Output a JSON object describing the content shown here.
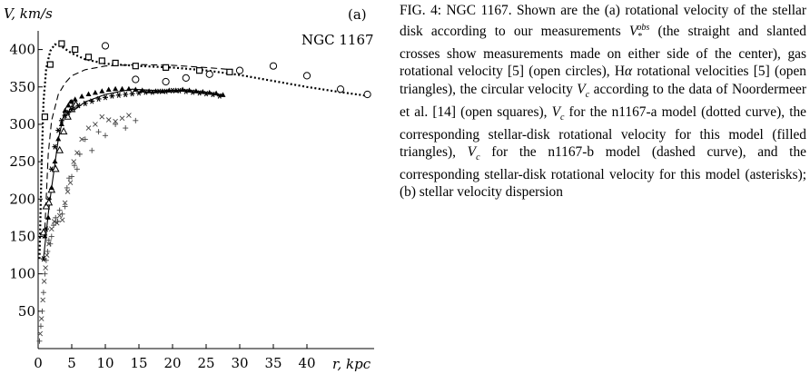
{
  "caption": {
    "label": "FIG. 4:",
    "segments": [
      " NGC 1167. Shown are the (a) rotational velocity of the stellar disk according to our measurements ",
      "V",
      "*",
      "obs",
      " (the straight and slanted crosses show measurements made on either side of the center), gas rotational velocity [5] (open circles), H",
      "α",
      " rotational velocities [5] (open triangles), the circular velocity ",
      "V",
      "c",
      " according to the data of Noordermeer et al. [14] (open squares), ",
      "V",
      "c",
      " for the n1167-a model (dotted curve), the corresponding stellar-disk rotational velocity for this model (filled triangles), ",
      "V",
      "c",
      " for the n1167-b model (dashed curve), and the corresponding stellar-disk rotational velocity for this model (asterisks); (b) stellar velocity dispersion"
    ]
  },
  "chart_data": {
    "type": "scatter",
    "panel_label": "(a)",
    "object_label": "NGC 1167",
    "ylabel": "V, km/s",
    "xlabel": "r, kpc",
    "xlim": [
      0,
      50
    ],
    "ylim": [
      0,
      425
    ],
    "x_ticks": [
      0,
      5,
      10,
      15,
      20,
      25,
      30,
      35,
      40
    ],
    "y_ticks": [
      50,
      100,
      150,
      200,
      250,
      300,
      350,
      400
    ],
    "series": [
      {
        "marker": "straight-cross",
        "points": [
          [
            0.2,
            10
          ],
          [
            0.4,
            30
          ],
          [
            0.6,
            50
          ],
          [
            0.8,
            75
          ],
          [
            1.0,
            100
          ],
          [
            1.2,
            118
          ],
          [
            1.4,
            130
          ],
          [
            1.6,
            145
          ],
          [
            1.8,
            140
          ],
          [
            2.0,
            150
          ],
          [
            2.3,
            165
          ],
          [
            2.6,
            175
          ],
          [
            2.9,
            170
          ],
          [
            3.2,
            185
          ],
          [
            3.6,
            180
          ],
          [
            4.0,
            190
          ],
          [
            4.3,
            215
          ],
          [
            4.6,
            228
          ],
          [
            5.0,
            230
          ],
          [
            5.4,
            245
          ],
          [
            5.8,
            240
          ],
          [
            6.2,
            260
          ],
          [
            7.0,
            280
          ],
          [
            8.0,
            265
          ],
          [
            9.0,
            290
          ],
          [
            10.0,
            285
          ],
          [
            11.5,
            300
          ],
          [
            13.0,
            295
          ],
          [
            14.5,
            305
          ]
        ]
      },
      {
        "marker": "slanted-cross",
        "points": [
          [
            0.3,
            20
          ],
          [
            0.5,
            40
          ],
          [
            0.7,
            65
          ],
          [
            0.9,
            90
          ],
          [
            1.1,
            108
          ],
          [
            1.3,
            125
          ],
          [
            1.6,
            140
          ],
          [
            2.0,
            160
          ],
          [
            2.4,
            170
          ],
          [
            2.8,
            168
          ],
          [
            3.2,
            178
          ],
          [
            3.6,
            172
          ],
          [
            4.0,
            195
          ],
          [
            4.4,
            210
          ],
          [
            4.8,
            222
          ],
          [
            5.3,
            250
          ],
          [
            5.8,
            262
          ],
          [
            6.5,
            280
          ],
          [
            7.5,
            295
          ],
          [
            8.5,
            300
          ],
          [
            9.5,
            310
          ],
          [
            10.5,
            306
          ],
          [
            11.5,
            304
          ],
          [
            12.5,
            308
          ],
          [
            13.5,
            312
          ]
        ]
      },
      {
        "marker": "open-circle",
        "points": [
          [
            10.0,
            405
          ],
          [
            14.5,
            360
          ],
          [
            19.0,
            357
          ],
          [
            22.0,
            362
          ],
          [
            25.5,
            367
          ],
          [
            30.0,
            372
          ],
          [
            35.0,
            378
          ],
          [
            40.0,
            365
          ],
          [
            45.0,
            347
          ],
          [
            49.0,
            340
          ]
        ]
      },
      {
        "marker": "open-triangle",
        "points": [
          [
            0.8,
            155
          ],
          [
            1.2,
            190
          ],
          [
            1.6,
            195
          ],
          [
            2.0,
            212
          ],
          [
            2.6,
            240
          ],
          [
            3.2,
            265
          ],
          [
            3.8,
            290
          ],
          [
            4.4,
            310
          ],
          [
            5.0,
            320
          ],
          [
            5.6,
            326
          ]
        ]
      },
      {
        "marker": "open-square",
        "points": [
          [
            1.0,
            310
          ],
          [
            1.8,
            380
          ],
          [
            3.5,
            408
          ],
          [
            5.5,
            400
          ],
          [
            7.5,
            390
          ],
          [
            9.5,
            385
          ],
          [
            11.5,
            382
          ],
          [
            14.5,
            378
          ],
          [
            19.0,
            376
          ],
          [
            24.0,
            372
          ],
          [
            28.5,
            370
          ]
        ]
      },
      {
        "marker": "filled-triangle",
        "points": [
          [
            1.0,
            150
          ],
          [
            1.5,
            175
          ],
          [
            2.0,
            215
          ],
          [
            2.5,
            250
          ],
          [
            3.0,
            280
          ],
          [
            3.5,
            300
          ],
          [
            4.0,
            318
          ],
          [
            4.5,
            325
          ],
          [
            5.0,
            330
          ],
          [
            5.5,
            333
          ],
          [
            6.5,
            337
          ],
          [
            7.5,
            340
          ],
          [
            8.5,
            342
          ],
          [
            9.5,
            344
          ],
          [
            10.5,
            346
          ],
          [
            11.5,
            347
          ],
          [
            12.5,
            347
          ],
          [
            13.5,
            347
          ],
          [
            14.5,
            346
          ],
          [
            15.5,
            345
          ],
          [
            16.5,
            344
          ],
          [
            17.5,
            344
          ],
          [
            18.5,
            344
          ],
          [
            19.5,
            345
          ],
          [
            20.5,
            345
          ],
          [
            21.5,
            346
          ],
          [
            22.5,
            345
          ],
          [
            23.5,
            344
          ],
          [
            24.5,
            343
          ],
          [
            25.5,
            342
          ],
          [
            26.5,
            341
          ],
          [
            27.5,
            339
          ]
        ]
      },
      {
        "marker": "asterisk",
        "points": [
          [
            0.8,
            120
          ],
          [
            1.2,
            160
          ],
          [
            1.6,
            200
          ],
          [
            2.0,
            240
          ],
          [
            2.5,
            270
          ],
          [
            3.0,
            292
          ],
          [
            3.5,
            305
          ],
          [
            4.0,
            312
          ],
          [
            4.5,
            316
          ],
          [
            5.0,
            320
          ],
          [
            6.0,
            325
          ],
          [
            7.0,
            328
          ],
          [
            8.0,
            331
          ],
          [
            9.0,
            334
          ],
          [
            10.0,
            336
          ],
          [
            11.0,
            338
          ],
          [
            12.0,
            339
          ],
          [
            13.0,
            340
          ],
          [
            14.0,
            341
          ],
          [
            15.0,
            342
          ],
          [
            16.0,
            343
          ],
          [
            17.0,
            343
          ],
          [
            18.0,
            344
          ],
          [
            19.0,
            344
          ],
          [
            20.0,
            345
          ],
          [
            21.0,
            345
          ],
          [
            22.0,
            344
          ],
          [
            23.0,
            343
          ],
          [
            24.0,
            342
          ],
          [
            25.0,
            341
          ],
          [
            26.0,
            340
          ],
          [
            27.0,
            338
          ]
        ]
      }
    ],
    "curves": [
      {
        "style": "dotted",
        "points": [
          [
            0.2,
            120
          ],
          [
            0.5,
            240
          ],
          [
            0.8,
            330
          ],
          [
            1.2,
            375
          ],
          [
            1.8,
            398
          ],
          [
            2.5,
            407
          ],
          [
            3.5,
            404
          ],
          [
            5.0,
            395
          ],
          [
            7.0,
            387
          ],
          [
            10.0,
            381
          ],
          [
            15.0,
            378
          ],
          [
            20.0,
            376
          ],
          [
            25.0,
            372
          ],
          [
            30.0,
            366
          ],
          [
            35.0,
            358
          ],
          [
            40.0,
            350
          ],
          [
            45.0,
            343
          ],
          [
            49.0,
            338
          ]
        ]
      },
      {
        "style": "dashed",
        "points": [
          [
            1.0,
            160
          ],
          [
            1.5,
            260
          ],
          [
            2.0,
            305
          ],
          [
            3.0,
            340
          ],
          [
            4.0,
            355
          ],
          [
            5.0,
            365
          ],
          [
            7.0,
            373
          ],
          [
            10.0,
            378
          ],
          [
            15.0,
            380
          ],
          [
            20.0,
            379
          ],
          [
            25.0,
            376
          ],
          [
            29.0,
            373
          ]
        ]
      },
      {
        "style": "solid",
        "points": [
          [
            0.8,
            120
          ],
          [
            1.5,
            180
          ],
          [
            2.0,
            215
          ],
          [
            3.0,
            280
          ],
          [
            4.0,
            320
          ],
          [
            4.8,
            332
          ],
          [
            5.5,
            320
          ],
          [
            7.0,
            330
          ],
          [
            10.0,
            340
          ],
          [
            14.0,
            347
          ],
          [
            18.0,
            345
          ],
          [
            22.0,
            346
          ],
          [
            25.0,
            343
          ],
          [
            27.5,
            339
          ]
        ]
      }
    ]
  }
}
